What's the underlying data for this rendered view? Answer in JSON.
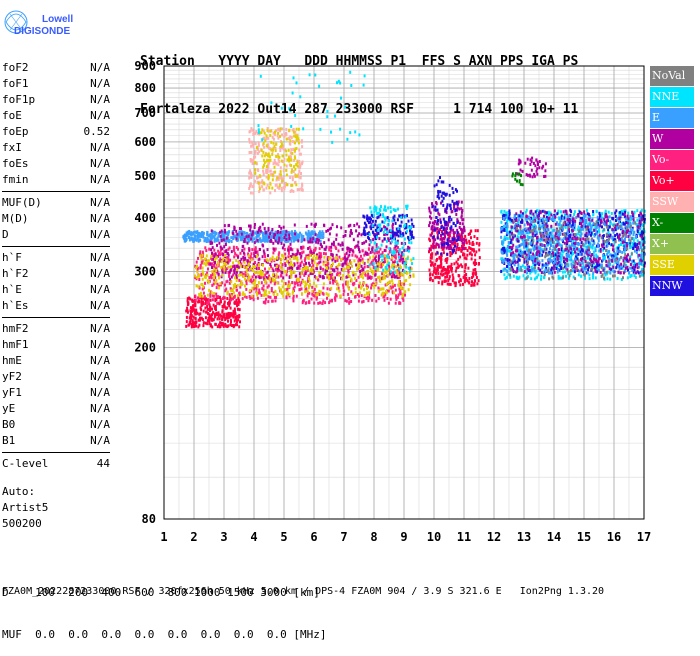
{
  "logo": {
    "line1": "Lowell",
    "line2": "DIGISONDE"
  },
  "header": {
    "labels": "Station   YYYY DAY   DDD HHMMSS P1  FFS S AXN PPS IGA PS",
    "values": "Fortaleza 2022 Out14 287 233000 RSF     1 714 100 10+ 11"
  },
  "params": {
    "group1": [
      {
        "name": "foF2",
        "value": "N/A"
      },
      {
        "name": "foF1",
        "value": "N/A"
      },
      {
        "name": "foF1p",
        "value": "N/A"
      },
      {
        "name": "foE",
        "value": "N/A"
      },
      {
        "name": "foEp",
        "value": "0.52"
      },
      {
        "name": "fxI",
        "value": "N/A"
      },
      {
        "name": "foEs",
        "value": "N/A"
      },
      {
        "name": "fmin",
        "value": "N/A"
      }
    ],
    "group2": [
      {
        "name": "MUF(D)",
        "value": "N/A"
      },
      {
        "name": "M(D)",
        "value": "N/A"
      },
      {
        "name": "D",
        "value": "N/A"
      }
    ],
    "group3": [
      {
        "name": "h`F",
        "value": "N/A"
      },
      {
        "name": "h`F2",
        "value": "N/A"
      },
      {
        "name": "h`E",
        "value": "N/A"
      },
      {
        "name": "h`Es",
        "value": "N/A"
      }
    ],
    "group4": [
      {
        "name": "hmF2",
        "value": "N/A"
      },
      {
        "name": "hmF1",
        "value": "N/A"
      },
      {
        "name": "hmE",
        "value": "N/A"
      },
      {
        "name": "yF2",
        "value": "N/A"
      },
      {
        "name": "yF1",
        "value": "N/A"
      },
      {
        "name": "yE",
        "value": "N/A"
      },
      {
        "name": "B0",
        "value": "N/A"
      },
      {
        "name": "B1",
        "value": "N/A"
      }
    ],
    "clevel": {
      "name": "C-level",
      "value": "44"
    }
  },
  "auto": {
    "line1": "Auto:",
    "line2": "Artist5",
    "line3": "500200"
  },
  "legend": [
    {
      "label": "NoVal",
      "color": "#808080"
    },
    {
      "label": "NNE",
      "color": "#00e5ff"
    },
    {
      "label": "E",
      "color": "#3aa0ff"
    },
    {
      "label": "W",
      "color": "#b000a0"
    },
    {
      "label": "Vo-",
      "color": "#ff2080"
    },
    {
      "label": "Vo+",
      "color": "#ff0040"
    },
    {
      "label": "SSW",
      "color": "#ffb0b0"
    },
    {
      "label": "X-",
      "color": "#008000"
    },
    {
      "label": "X+",
      "color": "#90c050"
    },
    {
      "label": "SSE",
      "color": "#e0d000"
    },
    {
      "label": "NNW",
      "color": "#2010e0"
    }
  ],
  "bottom": {
    "d_line": "D    100  200  400  600  800 1000 1500 3000 [km]",
    "muf_line": "MUF  0.0  0.0  0.0  0.0  0.0  0.0  0.0  0.0 [MHz]"
  },
  "footer": "FZA0M_2022287233000.RSF / 320fx256h 50 kHz 5.0 km / DPS-4 FZA0M 904 / 3.9 S 321.6 E   Ion2Png 1.3.20",
  "chart_data": {
    "type": "scatter",
    "xlabel": "",
    "ylabel": "",
    "xlim": [
      1,
      17
    ],
    "ylim": [
      80,
      900
    ],
    "x_ticks": [
      1,
      2,
      3,
      4,
      5,
      6,
      7,
      8,
      9,
      10,
      11,
      12,
      13,
      14,
      15,
      16,
      17
    ],
    "y_ticks": [
      80,
      200,
      300,
      400,
      500,
      600,
      700,
      800,
      900
    ],
    "y_scale": "log",
    "grid": true,
    "legend_position": "right",
    "clusters": [
      {
        "series": "E",
        "x": [
          1.6,
          6.3
        ],
        "y": [
          355,
          375
        ],
        "count": 500
      },
      {
        "series": "Vo+",
        "x": [
          1.7,
          3.5
        ],
        "y": [
          225,
          265
        ],
        "count": 300
      },
      {
        "series": "Vo-",
        "x": [
          2.0,
          9.0
        ],
        "y": [
          255,
          345
        ],
        "count": 800
      },
      {
        "series": "W",
        "x": [
          2.5,
          9.2
        ],
        "y": [
          290,
          390
        ],
        "count": 500
      },
      {
        "series": "SSE",
        "x": [
          2.0,
          9.3
        ],
        "y": [
          265,
          330
        ],
        "count": 450
      },
      {
        "series": "SSW",
        "x": [
          3.8,
          5.6
        ],
        "y": [
          460,
          650
        ],
        "count": 260
      },
      {
        "series": "SSE",
        "x": [
          4.0,
          5.5
        ],
        "y": [
          470,
          650
        ],
        "count": 120
      },
      {
        "series": "NNW",
        "x": [
          7.6,
          9.3
        ],
        "y": [
          360,
          410
        ],
        "count": 120
      },
      {
        "series": "NNE",
        "x": [
          7.8,
          9.3
        ],
        "y": [
          300,
          430
        ],
        "count": 120
      },
      {
        "series": "Vo+",
        "x": [
          9.8,
          11.5
        ],
        "y": [
          280,
          380
        ],
        "count": 300
      },
      {
        "series": "W",
        "x": [
          9.8,
          11.0
        ],
        "y": [
          340,
          440
        ],
        "count": 150
      },
      {
        "series": "NNW",
        "x": [
          9.9,
          10.8
        ],
        "y": [
          330,
          500
        ],
        "count": 90
      },
      {
        "series": "NNE",
        "x": [
          12.2,
          17.0
        ],
        "y": [
          290,
          420
        ],
        "count": 700
      },
      {
        "series": "NNW",
        "x": [
          12.2,
          17.0
        ],
        "y": [
          300,
          420
        ],
        "count": 500
      },
      {
        "series": "E",
        "x": [
          12.2,
          17.0
        ],
        "y": [
          300,
          410
        ],
        "count": 500
      },
      {
        "series": "W",
        "x": [
          12.5,
          17.0
        ],
        "y": [
          300,
          420
        ],
        "count": 260
      },
      {
        "series": "NoVal",
        "x": [
          12.5,
          17.0
        ],
        "y": [
          290,
          400
        ],
        "count": 120
      },
      {
        "series": "W",
        "x": [
          12.7,
          13.7
        ],
        "y": [
          500,
          555
        ],
        "count": 40
      },
      {
        "series": "X-",
        "x": [
          12.5,
          13.0
        ],
        "y": [
          480,
          520
        ],
        "count": 12
      },
      {
        "series": "NNE",
        "x": [
          4.0,
          8.0
        ],
        "y": [
          600,
          880
        ],
        "count": 40
      }
    ]
  }
}
